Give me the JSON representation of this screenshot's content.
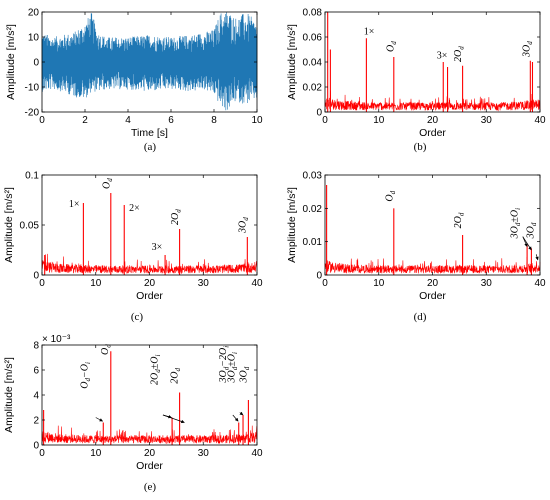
{
  "figure": {
    "colors": {
      "time_signal": "#1f77b4",
      "spectrum": "#ff0000",
      "axes": "#000000"
    },
    "captions": [
      "(a)",
      "(b)",
      "(c)",
      "(d)",
      "(e)"
    ]
  },
  "chart_data": [
    {
      "panel": "a",
      "type": "line",
      "xlabel": "Time [s]",
      "ylabel": "Amplitude [m/s²]",
      "xlim": [
        0,
        10
      ],
      "ylim": [
        -20,
        20
      ],
      "xticks": [
        0,
        2,
        4,
        6,
        8,
        10
      ],
      "yticks": [
        -20,
        -10,
        0,
        10,
        20
      ],
      "envelope": {
        "t": [
          0,
          0.5,
          1,
          1.5,
          2,
          2.3,
          2.6,
          3,
          4,
          5,
          6,
          7,
          7.5,
          8,
          8.3,
          8.6,
          9,
          9.5,
          10
        ],
        "upper": [
          12,
          10,
          11,
          12,
          16,
          20,
          12,
          10,
          10,
          11,
          10,
          11,
          12,
          13,
          20,
          21,
          18,
          20,
          16
        ],
        "lower": [
          -12,
          -11,
          -12,
          -14,
          -15,
          -12,
          -12,
          -11,
          -11,
          -12,
          -11,
          -12,
          -11,
          -13,
          -18,
          -20,
          -16,
          -17,
          -15
        ]
      }
    },
    {
      "panel": "b",
      "type": "line",
      "xlabel": "Order",
      "ylabel": "Amplitude [m/s²]",
      "xlim": [
        0,
        40
      ],
      "ylim": [
        0,
        0.08
      ],
      "xticks": [
        0,
        10,
        20,
        30,
        40
      ],
      "yticks": [
        0,
        0.02,
        0.04,
        0.06,
        0.08
      ],
      "ytick_labels": [
        "0",
        "0.02",
        "0.04",
        "0.06",
        "0.08"
      ],
      "peaks": [
        {
          "x": 0.5,
          "y": 0.08
        },
        {
          "x": 1.0,
          "y": 0.05
        },
        {
          "x": 7.7,
          "y": 0.059
        },
        {
          "x": 12.8,
          "y": 0.044
        },
        {
          "x": 22.0,
          "y": 0.04
        },
        {
          "x": 22.8,
          "y": 0.036
        },
        {
          "x": 25.6,
          "y": 0.037
        },
        {
          "x": 38.2,
          "y": 0.041
        },
        {
          "x": 38.6,
          "y": 0.04
        }
      ],
      "annotations": [
        {
          "text": "1×",
          "x": 7.2,
          "y": 0.062
        },
        {
          "text": "O",
          "sub": "d",
          "x": 12.7,
          "y": 0.048,
          "rotate": true
        },
        {
          "text": "3×",
          "x": 20.8,
          "y": 0.043
        },
        {
          "text": "2O",
          "sub": "d",
          "x": 25.3,
          "y": 0.04,
          "rotate": true
        },
        {
          "text": "3O",
          "sub": "d",
          "x": 38.0,
          "y": 0.044,
          "rotate": true
        }
      ]
    },
    {
      "panel": "c",
      "type": "line",
      "xlabel": "Order",
      "ylabel": "Amplitude [m/s²]",
      "xlim": [
        0,
        40
      ],
      "ylim": [
        0,
        0.1
      ],
      "xticks": [
        0,
        10,
        20,
        30,
        40
      ],
      "yticks": [
        0,
        0.05,
        0.1
      ],
      "ytick_labels": [
        "0",
        "0.05",
        "0.1"
      ],
      "peaks": [
        {
          "x": 0.5,
          "y": 0.02
        },
        {
          "x": 7.7,
          "y": 0.072
        },
        {
          "x": 12.8,
          "y": 0.082
        },
        {
          "x": 15.3,
          "y": 0.07
        },
        {
          "x": 22.9,
          "y": 0.02
        },
        {
          "x": 25.6,
          "y": 0.046
        },
        {
          "x": 38.2,
          "y": 0.038
        }
      ],
      "annotations": [
        {
          "text": "1×",
          "x": 5.0,
          "y": 0.068
        },
        {
          "text": "O",
          "sub": "d",
          "x": 12.6,
          "y": 0.086,
          "rotate": true
        },
        {
          "text": "2×",
          "x": 16.2,
          "y": 0.064
        },
        {
          "text": "3×",
          "x": 20.4,
          "y": 0.025
        },
        {
          "text": "2O",
          "sub": "d",
          "x": 25.3,
          "y": 0.05,
          "rotate": true
        },
        {
          "text": "3O",
          "sub": "d",
          "x": 37.9,
          "y": 0.042,
          "rotate": true
        }
      ]
    },
    {
      "panel": "d",
      "type": "line",
      "xlabel": "Order",
      "ylabel": "Amplitude [m/s²]",
      "xlim": [
        0,
        40
      ],
      "ylim": [
        0,
        0.03
      ],
      "xticks": [
        0,
        10,
        20,
        30,
        40
      ],
      "yticks": [
        0,
        0.01,
        0.02,
        0.03
      ],
      "ytick_labels": [
        "0",
        "0.01",
        "0.02",
        "0.03"
      ],
      "peaks": [
        {
          "x": 0.3,
          "y": 0.027
        },
        {
          "x": 12.8,
          "y": 0.02
        },
        {
          "x": 25.6,
          "y": 0.012
        },
        {
          "x": 37.6,
          "y": 0.009
        },
        {
          "x": 38.4,
          "y": 0.008
        }
      ],
      "annotations": [
        {
          "text": "O",
          "sub": "d",
          "x": 12.6,
          "y": 0.022,
          "rotate": true
        },
        {
          "text": "2O",
          "sub": "d",
          "x": 25.3,
          "y": 0.014,
          "rotate": true
        },
        {
          "text": "3O",
          "sub": "d",
          "suffix": "±O",
          "sub2": "i",
          "x": 35.8,
          "y": 0.011,
          "rotate": true
        },
        {
          "text": "3O",
          "sub": "d",
          "x": 38.8,
          "y": 0.011,
          "rotate": true
        }
      ]
    },
    {
      "panel": "e",
      "type": "line",
      "xlabel": "Order",
      "ylabel": "Amplitude [m/s²]",
      "xlim": [
        0,
        40
      ],
      "ylim": [
        0,
        0.008
      ],
      "y_multiplier": "× 10⁻³",
      "xticks": [
        0,
        10,
        20,
        30,
        40
      ],
      "yticks": [
        0,
        2,
        4,
        6,
        8
      ],
      "ytick_labels": [
        "0",
        "2",
        "4",
        "6",
        "8"
      ],
      "peaks": [
        {
          "x": 0.3,
          "y": 0.0028
        },
        {
          "x": 11.4,
          "y": 0.0018
        },
        {
          "x": 12.8,
          "y": 0.0075
        },
        {
          "x": 24.2,
          "y": 0.0022
        },
        {
          "x": 25.6,
          "y": 0.0042
        },
        {
          "x": 36.6,
          "y": 0.0018
        },
        {
          "x": 37.4,
          "y": 0.0024
        },
        {
          "x": 38.4,
          "y": 0.0036
        }
      ],
      "annotations": [
        {
          "text": "O",
          "sub": "d",
          "suffix": "−O",
          "sub2": "i",
          "x": 8.5,
          "y": 0.0045,
          "rotate": true
        },
        {
          "text": "O",
          "sub": "d",
          "x": 12.3,
          "y": 0.0072,
          "rotate": true
        },
        {
          "text": "2O",
          "sub": "d",
          "suffix": "±O",
          "sub2": "i",
          "x": 21.5,
          "y": 0.0048,
          "rotate": true
        },
        {
          "text": "2O",
          "sub": "d",
          "x": 25.2,
          "y": 0.0049,
          "rotate": true
        },
        {
          "text": "3O",
          "sub": "d",
          "suffix": "−2O",
          "sub2": "i",
          "x": 34.2,
          "y": 0.005,
          "rotate": true
        },
        {
          "text": "3O",
          "sub": "d",
          "suffix": "±O",
          "sub2": "i",
          "x": 35.8,
          "y": 0.005,
          "rotate": true
        },
        {
          "text": "3O",
          "sub": "d",
          "x": 38.0,
          "y": 0.005,
          "rotate": true
        }
      ]
    }
  ]
}
